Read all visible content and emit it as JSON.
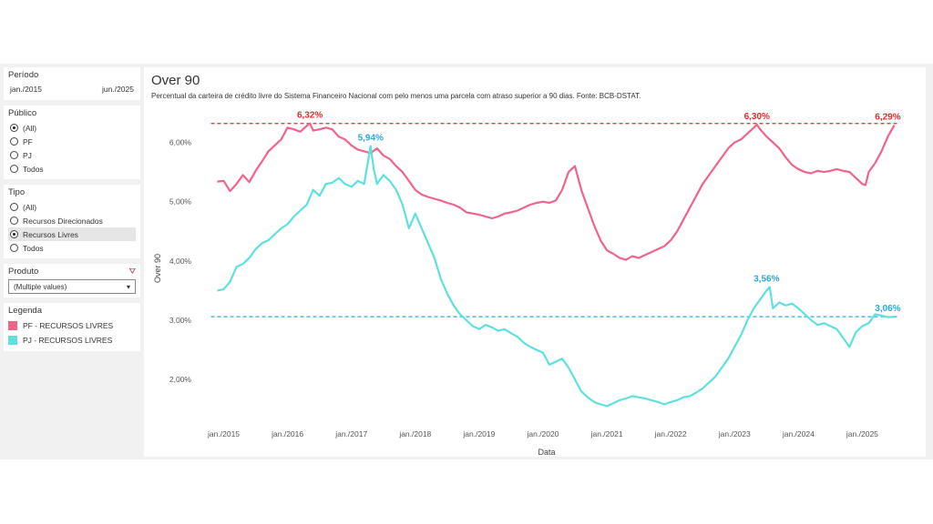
{
  "sidebar": {
    "period": {
      "title": "Período",
      "start": "jan./2015",
      "end": "jun./2025"
    },
    "publico": {
      "title": "Público",
      "options": [
        "(All)",
        "PF",
        "PJ",
        "Todos"
      ],
      "selected": 0
    },
    "tipo": {
      "title": "Tipo",
      "options": [
        "(All)",
        "Recursos Direcionados",
        "Recursos Livres",
        "Todos"
      ],
      "selected": 2
    },
    "produto": {
      "title": "Produto",
      "value": "(Multiple values)"
    },
    "legenda": {
      "title": "Legenda",
      "items": [
        {
          "label": "PF - RECURSOS LIVRES",
          "color": "#f0648a"
        },
        {
          "label": "PJ - RECURSOS LIVRES",
          "color": "#5ee0e0"
        }
      ]
    }
  },
  "main": {
    "title": "Over 90",
    "subtitle": "Percentual da carteira de crédito livre do Sistema Financeiro Nacional com pelo menos uma parcela com atraso superior a 90 dias. Fonte: BCB-DSTAT."
  },
  "chart_data": {
    "type": "line",
    "xlabel": "Data",
    "ylabel": "Over 90",
    "x_range": [
      2015.0,
      2025.5
    ],
    "ylim": [
      1.25,
      6.5
    ],
    "y_ticks": [
      "2,00%",
      "3,00%",
      "4,00%",
      "5,00%",
      "6,00%"
    ],
    "y_tick_values": [
      2,
      3,
      4,
      5,
      6
    ],
    "x_ticks": [
      "jan./2015",
      "jan./2016",
      "jan./2017",
      "jan./2018",
      "jan./2019",
      "jan./2020",
      "jan./2021",
      "jan./2022",
      "jan./2023",
      "jan./2024",
      "jan./2025"
    ],
    "x_tick_values": [
      2015,
      2016,
      2017,
      2018,
      2019,
      2020,
      2021,
      2022,
      2023,
      2024,
      2025
    ],
    "series": [
      {
        "name": "PF - RECURSOS LIVRES",
        "color": "#f0648a",
        "points": [
          [
            2014.9,
            5.34
          ],
          [
            2015.0,
            5.35
          ],
          [
            2015.1,
            5.18
          ],
          [
            2015.2,
            5.3
          ],
          [
            2015.3,
            5.45
          ],
          [
            2015.4,
            5.33
          ],
          [
            2015.5,
            5.52
          ],
          [
            2015.6,
            5.68
          ],
          [
            2015.7,
            5.85
          ],
          [
            2015.8,
            5.95
          ],
          [
            2015.9,
            6.05
          ],
          [
            2016.0,
            6.25
          ],
          [
            2016.1,
            6.22
          ],
          [
            2016.2,
            6.18
          ],
          [
            2016.3,
            6.28
          ],
          [
            2016.35,
            6.32
          ],
          [
            2016.4,
            6.2
          ],
          [
            2016.5,
            6.22
          ],
          [
            2016.6,
            6.25
          ],
          [
            2016.7,
            6.22
          ],
          [
            2016.8,
            6.1
          ],
          [
            2016.9,
            6.05
          ],
          [
            2017.0,
            5.95
          ],
          [
            2017.1,
            5.88
          ],
          [
            2017.2,
            5.85
          ],
          [
            2017.3,
            5.82
          ],
          [
            2017.4,
            5.9
          ],
          [
            2017.5,
            5.78
          ],
          [
            2017.6,
            5.72
          ],
          [
            2017.7,
            5.6
          ],
          [
            2017.8,
            5.5
          ],
          [
            2017.9,
            5.35
          ],
          [
            2018.0,
            5.2
          ],
          [
            2018.1,
            5.12
          ],
          [
            2018.2,
            5.08
          ],
          [
            2018.3,
            5.05
          ],
          [
            2018.4,
            5.02
          ],
          [
            2018.5,
            4.98
          ],
          [
            2018.6,
            4.95
          ],
          [
            2018.7,
            4.9
          ],
          [
            2018.8,
            4.82
          ],
          [
            2018.9,
            4.8
          ],
          [
            2019.0,
            4.78
          ],
          [
            2019.1,
            4.75
          ],
          [
            2019.2,
            4.72
          ],
          [
            2019.3,
            4.75
          ],
          [
            2019.4,
            4.8
          ],
          [
            2019.5,
            4.82
          ],
          [
            2019.6,
            4.85
          ],
          [
            2019.7,
            4.9
          ],
          [
            2019.8,
            4.95
          ],
          [
            2019.9,
            4.98
          ],
          [
            2020.0,
            5.0
          ],
          [
            2020.1,
            4.98
          ],
          [
            2020.2,
            5.02
          ],
          [
            2020.3,
            5.2
          ],
          [
            2020.4,
            5.5
          ],
          [
            2020.5,
            5.6
          ],
          [
            2020.6,
            5.2
          ],
          [
            2020.7,
            4.9
          ],
          [
            2020.8,
            4.6
          ],
          [
            2020.9,
            4.35
          ],
          [
            2021.0,
            4.18
          ],
          [
            2021.1,
            4.12
          ],
          [
            2021.2,
            4.05
          ],
          [
            2021.3,
            4.02
          ],
          [
            2021.4,
            4.08
          ],
          [
            2021.5,
            4.05
          ],
          [
            2021.6,
            4.1
          ],
          [
            2021.7,
            4.15
          ],
          [
            2021.8,
            4.2
          ],
          [
            2021.9,
            4.25
          ],
          [
            2022.0,
            4.35
          ],
          [
            2022.1,
            4.5
          ],
          [
            2022.2,
            4.7
          ],
          [
            2022.3,
            4.9
          ],
          [
            2022.4,
            5.1
          ],
          [
            2022.5,
            5.3
          ],
          [
            2022.6,
            5.45
          ],
          [
            2022.7,
            5.6
          ],
          [
            2022.8,
            5.75
          ],
          [
            2022.9,
            5.9
          ],
          [
            2023.0,
            6.0
          ],
          [
            2023.1,
            6.05
          ],
          [
            2023.2,
            6.15
          ],
          [
            2023.3,
            6.25
          ],
          [
            2023.35,
            6.3
          ],
          [
            2023.4,
            6.22
          ],
          [
            2023.5,
            6.1
          ],
          [
            2023.6,
            6.0
          ],
          [
            2023.7,
            5.9
          ],
          [
            2023.8,
            5.75
          ],
          [
            2023.9,
            5.62
          ],
          [
            2024.0,
            5.55
          ],
          [
            2024.1,
            5.5
          ],
          [
            2024.2,
            5.48
          ],
          [
            2024.3,
            5.52
          ],
          [
            2024.4,
            5.5
          ],
          [
            2024.5,
            5.52
          ],
          [
            2024.6,
            5.55
          ],
          [
            2024.7,
            5.52
          ],
          [
            2024.8,
            5.5
          ],
          [
            2024.9,
            5.4
          ],
          [
            2025.0,
            5.3
          ],
          [
            2025.05,
            5.28
          ],
          [
            2025.1,
            5.5
          ],
          [
            2025.2,
            5.65
          ],
          [
            2025.3,
            5.85
          ],
          [
            2025.4,
            6.1
          ],
          [
            2025.5,
            6.29
          ]
        ]
      },
      {
        "name": "PJ - RECURSOS LIVRES",
        "color": "#5ee0e0",
        "points": [
          [
            2014.9,
            3.5
          ],
          [
            2015.0,
            3.52
          ],
          [
            2015.1,
            3.65
          ],
          [
            2015.2,
            3.9
          ],
          [
            2015.3,
            3.95
          ],
          [
            2015.4,
            4.05
          ],
          [
            2015.5,
            4.2
          ],
          [
            2015.6,
            4.3
          ],
          [
            2015.7,
            4.35
          ],
          [
            2015.8,
            4.45
          ],
          [
            2015.9,
            4.55
          ],
          [
            2016.0,
            4.62
          ],
          [
            2016.1,
            4.75
          ],
          [
            2016.2,
            4.85
          ],
          [
            2016.3,
            4.95
          ],
          [
            2016.4,
            5.2
          ],
          [
            2016.5,
            5.1
          ],
          [
            2016.6,
            5.3
          ],
          [
            2016.7,
            5.32
          ],
          [
            2016.8,
            5.4
          ],
          [
            2016.9,
            5.3
          ],
          [
            2017.0,
            5.25
          ],
          [
            2017.1,
            5.35
          ],
          [
            2017.2,
            5.3
          ],
          [
            2017.3,
            5.94
          ],
          [
            2017.35,
            5.55
          ],
          [
            2017.4,
            5.3
          ],
          [
            2017.5,
            5.45
          ],
          [
            2017.6,
            5.35
          ],
          [
            2017.7,
            5.2
          ],
          [
            2017.8,
            4.95
          ],
          [
            2017.9,
            4.55
          ],
          [
            2018.0,
            4.8
          ],
          [
            2018.1,
            4.55
          ],
          [
            2018.2,
            4.3
          ],
          [
            2018.3,
            4.05
          ],
          [
            2018.4,
            3.7
          ],
          [
            2018.5,
            3.45
          ],
          [
            2018.6,
            3.25
          ],
          [
            2018.7,
            3.1
          ],
          [
            2018.8,
            3.0
          ],
          [
            2018.9,
            2.9
          ],
          [
            2019.0,
            2.85
          ],
          [
            2019.1,
            2.92
          ],
          [
            2019.2,
            2.88
          ],
          [
            2019.3,
            2.82
          ],
          [
            2019.4,
            2.85
          ],
          [
            2019.5,
            2.78
          ],
          [
            2019.6,
            2.72
          ],
          [
            2019.7,
            2.62
          ],
          [
            2019.8,
            2.55
          ],
          [
            2019.9,
            2.5
          ],
          [
            2020.0,
            2.45
          ],
          [
            2020.1,
            2.25
          ],
          [
            2020.2,
            2.3
          ],
          [
            2020.3,
            2.35
          ],
          [
            2020.4,
            2.2
          ],
          [
            2020.5,
            2.0
          ],
          [
            2020.6,
            1.8
          ],
          [
            2020.7,
            1.7
          ],
          [
            2020.8,
            1.62
          ],
          [
            2020.9,
            1.58
          ],
          [
            2021.0,
            1.55
          ],
          [
            2021.1,
            1.6
          ],
          [
            2021.2,
            1.65
          ],
          [
            2021.3,
            1.68
          ],
          [
            2021.4,
            1.72
          ],
          [
            2021.5,
            1.7
          ],
          [
            2021.6,
            1.68
          ],
          [
            2021.7,
            1.65
          ],
          [
            2021.8,
            1.62
          ],
          [
            2021.9,
            1.58
          ],
          [
            2022.0,
            1.62
          ],
          [
            2022.1,
            1.65
          ],
          [
            2022.2,
            1.7
          ],
          [
            2022.3,
            1.72
          ],
          [
            2022.4,
            1.78
          ],
          [
            2022.5,
            1.85
          ],
          [
            2022.6,
            1.95
          ],
          [
            2022.7,
            2.05
          ],
          [
            2022.8,
            2.2
          ],
          [
            2022.9,
            2.35
          ],
          [
            2023.0,
            2.55
          ],
          [
            2023.1,
            2.75
          ],
          [
            2023.2,
            3.0
          ],
          [
            2023.3,
            3.2
          ],
          [
            2023.4,
            3.35
          ],
          [
            2023.5,
            3.5
          ],
          [
            2023.55,
            3.56
          ],
          [
            2023.6,
            3.2
          ],
          [
            2023.7,
            3.3
          ],
          [
            2023.8,
            3.25
          ],
          [
            2023.9,
            3.28
          ],
          [
            2024.0,
            3.2
          ],
          [
            2024.1,
            3.1
          ],
          [
            2024.2,
            3.0
          ],
          [
            2024.3,
            2.92
          ],
          [
            2024.4,
            2.95
          ],
          [
            2024.5,
            2.9
          ],
          [
            2024.6,
            2.85
          ],
          [
            2024.7,
            2.7
          ],
          [
            2024.8,
            2.55
          ],
          [
            2024.9,
            2.8
          ],
          [
            2025.0,
            2.9
          ],
          [
            2025.1,
            2.95
          ],
          [
            2025.2,
            3.1
          ],
          [
            2025.3,
            3.08
          ],
          [
            2025.4,
            3.05
          ],
          [
            2025.5,
            3.06
          ]
        ]
      }
    ],
    "reference_lines": [
      {
        "y": 6.32,
        "color": "#e8282a"
      },
      {
        "y": 3.06,
        "color": "#2aa8e0"
      }
    ],
    "annotations": [
      {
        "text": "6,32%",
        "x": 2016.35,
        "y": 6.32,
        "color": "#e8282a"
      },
      {
        "text": "6,30%",
        "x": 2023.35,
        "y": 6.3,
        "color": "#e8282a"
      },
      {
        "text": "6,29%",
        "x": 2025.4,
        "y": 6.29,
        "color": "#e8282a"
      },
      {
        "text": "5,94%",
        "x": 2017.3,
        "y": 5.94,
        "color": "#2aa8e0"
      },
      {
        "text": "3,56%",
        "x": 2023.5,
        "y": 3.56,
        "color": "#2aa8e0"
      },
      {
        "text": "3,06%",
        "x": 2025.4,
        "y": 3.06,
        "color": "#2aa8e0"
      }
    ]
  }
}
